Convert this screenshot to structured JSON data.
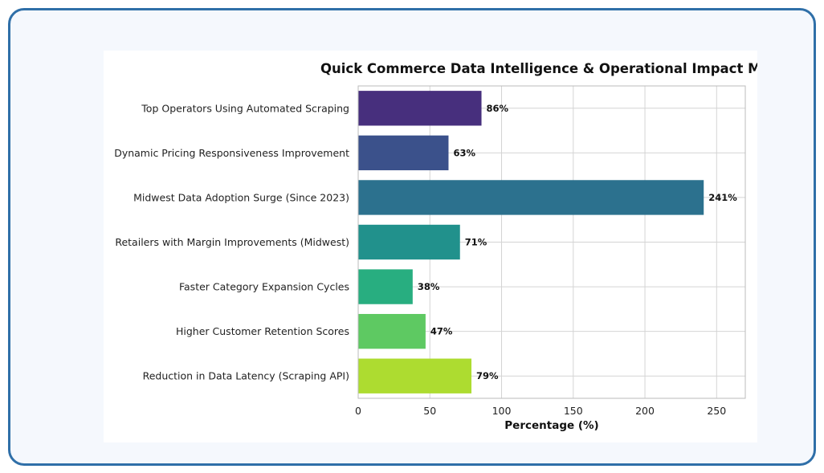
{
  "chart_data": {
    "type": "bar",
    "orientation": "horizontal",
    "title": "Quick Commerce Data Intelligence & Operational Impact Metrics",
    "xlabel": "Percentage (%)",
    "ylabel": "",
    "xlim": [
      0,
      270
    ],
    "xticks": [
      0,
      50,
      100,
      150,
      200,
      250
    ],
    "grid": true,
    "categories": [
      "Top Operators Using Automated Scraping",
      "Dynamic Pricing Responsiveness Improvement",
      "Midwest Data Adoption Surge (Since 2023)",
      "Retailers with Margin Improvements (Midwest)",
      "Faster Category Expansion Cycles",
      "Higher Customer Retention Scores",
      "Reduction in Data Latency (Scraping API)"
    ],
    "values": [
      86,
      63,
      241,
      71,
      38,
      47,
      79
    ],
    "value_labels": [
      "86%",
      "63%",
      "241%",
      "71%",
      "38%",
      "47%",
      "79%"
    ],
    "colors": [
      "#472f7d",
      "#3b518b",
      "#2c718e",
      "#21918c",
      "#28ae80",
      "#5ec962",
      "#addc30"
    ]
  }
}
